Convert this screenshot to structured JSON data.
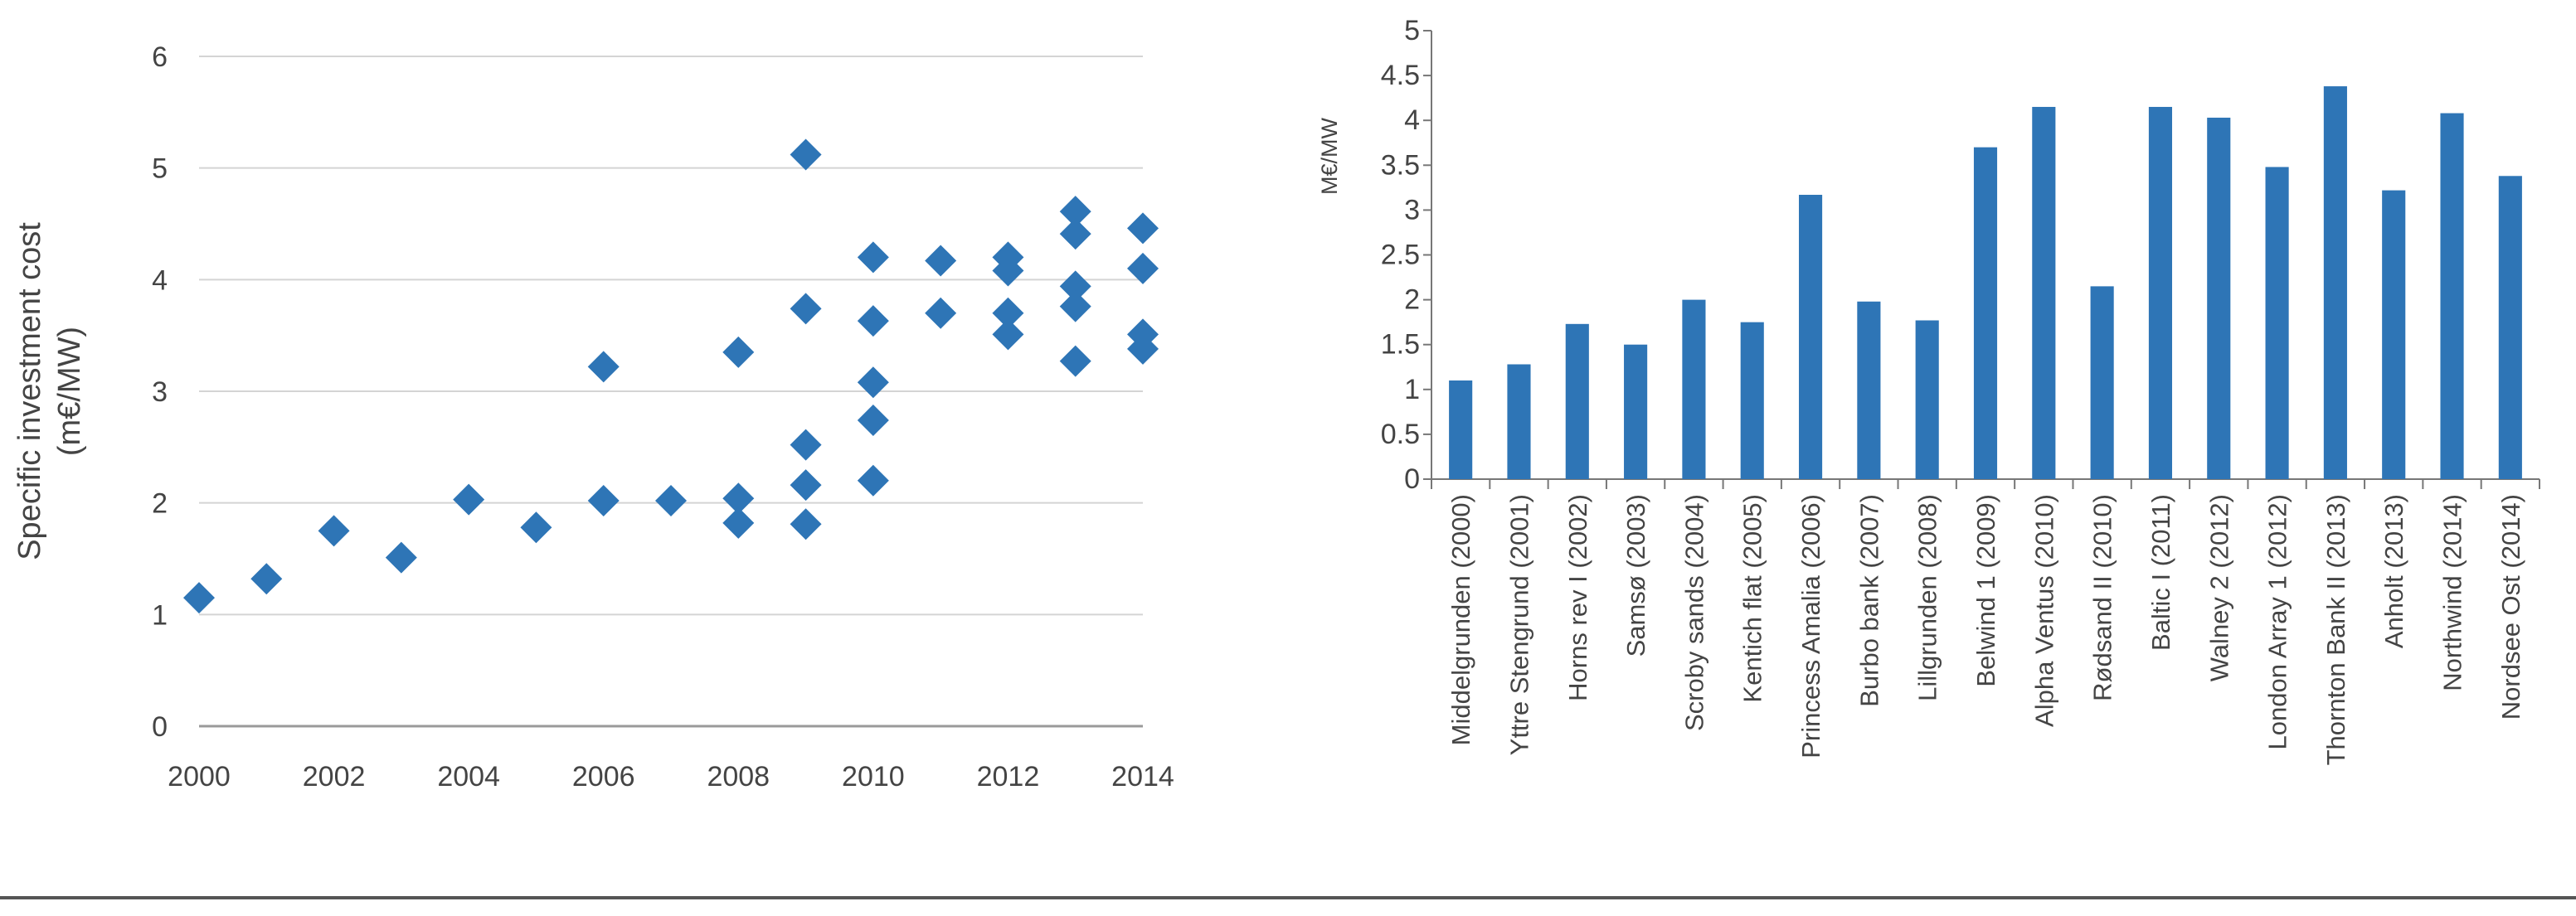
{
  "chart_data": [
    {
      "type": "scatter",
      "title": "",
      "xlabel": "",
      "ylabel": [
        "Specific investment cost",
        "(m€/MW)"
      ],
      "xlim": [
        2000,
        2014
      ],
      "ylim": [
        0,
        6
      ],
      "xticks": [
        2000,
        2002,
        2004,
        2006,
        2008,
        2010,
        2012,
        2014
      ],
      "yticks": [
        0,
        1,
        2,
        3,
        4,
        5,
        6
      ],
      "grid": "horizontal",
      "color": "#2E75B6",
      "marker": "diamond",
      "points": [
        {
          "x": 2000,
          "y": 1.15
        },
        {
          "x": 2001,
          "y": 1.32
        },
        {
          "x": 2002,
          "y": 1.75
        },
        {
          "x": 2003,
          "y": 1.51
        },
        {
          "x": 2004,
          "y": 2.03
        },
        {
          "x": 2005,
          "y": 1.78
        },
        {
          "x": 2006,
          "y": 3.22
        },
        {
          "x": 2006,
          "y": 2.02
        },
        {
          "x": 2007,
          "y": 2.02
        },
        {
          "x": 2008,
          "y": 3.35
        },
        {
          "x": 2008,
          "y": 2.04
        },
        {
          "x": 2008,
          "y": 1.82
        },
        {
          "x": 2009,
          "y": 5.12
        },
        {
          "x": 2009,
          "y": 3.74
        },
        {
          "x": 2009,
          "y": 2.52
        },
        {
          "x": 2009,
          "y": 2.16
        },
        {
          "x": 2009,
          "y": 1.81
        },
        {
          "x": 2010,
          "y": 4.2
        },
        {
          "x": 2010,
          "y": 3.63
        },
        {
          "x": 2010,
          "y": 3.08
        },
        {
          "x": 2010,
          "y": 2.74
        },
        {
          "x": 2010,
          "y": 2.2
        },
        {
          "x": 2011,
          "y": 4.17
        },
        {
          "x": 2011,
          "y": 3.7
        },
        {
          "x": 2012,
          "y": 4.2
        },
        {
          "x": 2012,
          "y": 4.08
        },
        {
          "x": 2012,
          "y": 3.7
        },
        {
          "x": 2012,
          "y": 3.51
        },
        {
          "x": 2013,
          "y": 4.61
        },
        {
          "x": 2013,
          "y": 4.41
        },
        {
          "x": 2013,
          "y": 3.94
        },
        {
          "x": 2013,
          "y": 3.76
        },
        {
          "x": 2013,
          "y": 3.27
        },
        {
          "x": 2014,
          "y": 4.46
        },
        {
          "x": 2014,
          "y": 4.1
        },
        {
          "x": 2014,
          "y": 3.51
        },
        {
          "x": 2014,
          "y": 3.38
        }
      ]
    },
    {
      "type": "bar",
      "title": "",
      "xlabel": "",
      "ylabel": "M€/MW",
      "ylim": [
        0,
        5
      ],
      "yticks": [
        0,
        0.5,
        1,
        1.5,
        2,
        2.5,
        3,
        3.5,
        4,
        4.5,
        5
      ],
      "grid": false,
      "color": "#2E75B6",
      "categories": [
        "Middelgrunden (2000)",
        "Yttre Stengrund (2001)",
        "Horns rev I (2002)",
        "Samsø (2003)",
        "Scroby sands (2004)",
        "Kentich flat (2005)",
        "Princess Amalia (2006)",
        "Burbo bank (2007)",
        "Lillgrunden (2008)",
        "Belwind 1 (2009)",
        "Alpha Ventus (2010)",
        "Rødsand II (2010)",
        "Baltic I (2011)",
        "Walney 2 (2012)",
        "London Array 1 (2012)",
        "Thornton Bank II (2013)",
        "Anholt (2013)",
        "Northwind (2014)",
        "Nordsee Ost (2014)"
      ],
      "values": [
        1.1,
        1.28,
        1.73,
        1.5,
        2.0,
        1.75,
        3.17,
        1.98,
        1.77,
        3.7,
        4.15,
        2.15,
        4.15,
        4.03,
        3.48,
        4.38,
        3.22,
        4.08,
        3.38
      ]
    }
  ]
}
